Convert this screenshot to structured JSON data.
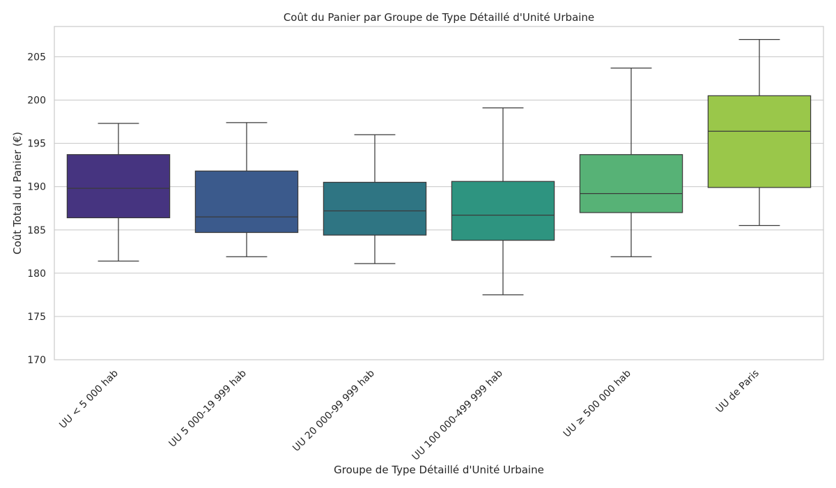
{
  "chart_data": {
    "type": "box",
    "title": "Coût du Panier par Groupe de Type Détaillé d'Unité Urbaine",
    "xlabel": "Groupe de Type Détaillé d'Unité Urbaine",
    "ylabel": "Coût Total du Panier (€)",
    "ylim": [
      170,
      208.5
    ],
    "yticks": [
      170,
      175,
      180,
      185,
      190,
      195,
      200,
      205
    ],
    "grid": true,
    "categories": [
      "UU < 5 000 hab",
      "UU 5 000-19 999 hab",
      "UU 20 000-99 999 hab",
      "UU 100 000-499 999 hab",
      "UU ≥ 500 000 hab",
      "UU de Paris"
    ],
    "boxes": [
      {
        "whisker_low": 181.4,
        "q1": 186.4,
        "median": 189.8,
        "q3": 193.7,
        "whisker_high": 197.3,
        "color": "#463480"
      },
      {
        "whisker_low": 181.9,
        "q1": 184.7,
        "median": 186.5,
        "q3": 191.8,
        "whisker_high": 197.4,
        "color": "#3b5a8c"
      },
      {
        "whisker_low": 181.1,
        "q1": 184.4,
        "median": 187.2,
        "q3": 190.5,
        "whisker_high": 196.0,
        "color": "#2f7583"
      },
      {
        "whisker_low": 177.5,
        "q1": 183.8,
        "median": 186.7,
        "q3": 190.6,
        "whisker_high": 199.1,
        "color": "#2e9480"
      },
      {
        "whisker_low": 181.9,
        "q1": 187.0,
        "median": 189.2,
        "q3": 193.7,
        "whisker_high": 203.7,
        "color": "#57b276"
      },
      {
        "whisker_low": 185.5,
        "q1": 189.9,
        "median": 196.4,
        "q3": 200.5,
        "whisker_high": 207.0,
        "color": "#9ac74a"
      }
    ]
  }
}
